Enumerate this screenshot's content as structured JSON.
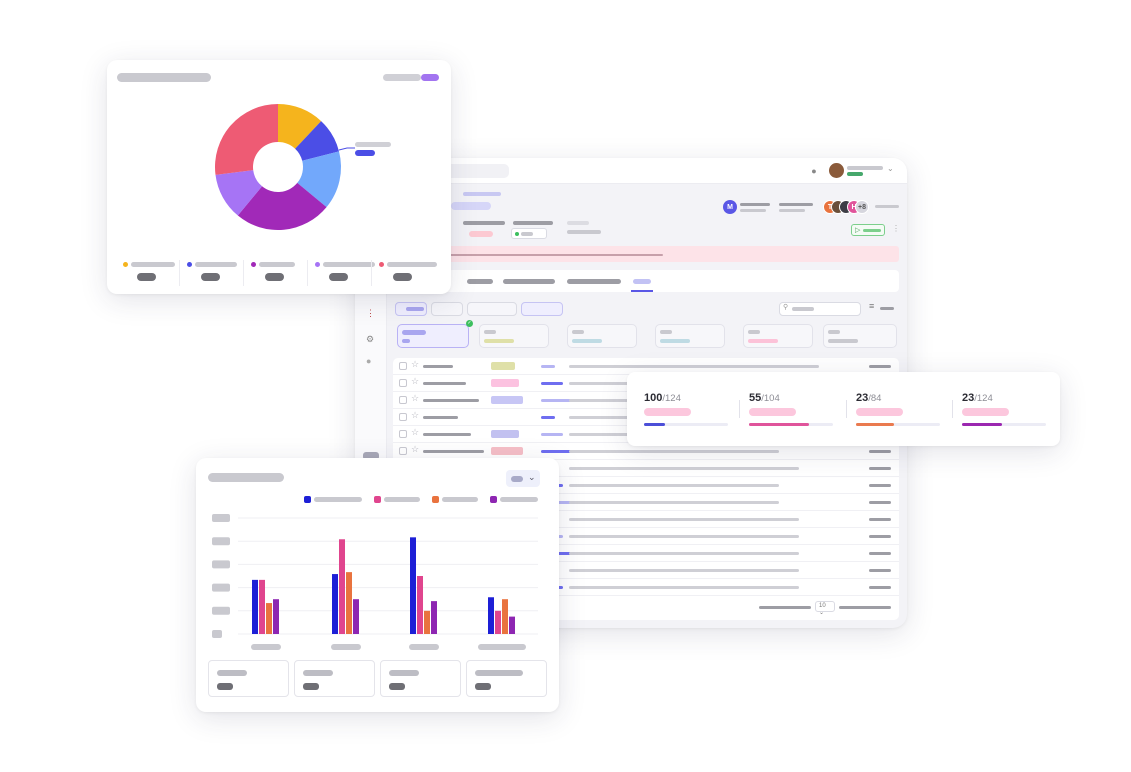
{
  "progress": {
    "metrics": [
      {
        "value": "100",
        "total": "/124",
        "ratio": 0.25,
        "color": "#4c4fd8"
      },
      {
        "value": "55",
        "total": "/104",
        "ratio": 0.72,
        "color": "#e0549b"
      },
      {
        "value": "23",
        "total": "/84",
        "ratio": 0.45,
        "color": "#ea7a4f"
      },
      {
        "value": "23",
        "total": "/124",
        "ratio": 0.48,
        "color": "#9b27b0"
      }
    ]
  },
  "donut": {
    "chart_data": {
      "type": "pie",
      "values": [
        12,
        9,
        15,
        25,
        12,
        27
      ],
      "colors": [
        "#f5b41d",
        "#4b4ee6",
        "#72a8fb",
        "#a129b8",
        "#a674f5",
        "#ee5b74"
      ]
    },
    "legend_colors": [
      "#f5b41d",
      "#4b4ee6",
      "#a129b8",
      "#a674f5",
      "#ee5b74"
    ]
  },
  "bars": {
    "chart_data": {
      "type": "bar",
      "ylim": [
        0,
        60
      ],
      "series_colors": [
        "#1d1fd6",
        "#e0458e",
        "#e9733e",
        "#8e26b2"
      ],
      "series": [
        {
          "values": [
            28,
            31,
            50,
            19
          ]
        },
        {
          "values": [
            28,
            49,
            30,
            12
          ]
        },
        {
          "values": [
            16,
            32,
            12,
            18
          ]
        },
        {
          "values": [
            18,
            18,
            17,
            9
          ]
        }
      ]
    }
  },
  "app": {
    "avatar_initial": "M",
    "team_avatars": [
      {
        "initial": "T",
        "color": "#e9733e"
      },
      {
        "initial": "",
        "color": "#6b4f3a"
      },
      {
        "initial": "",
        "color": "#3d3d46"
      },
      {
        "initial": "H",
        "color": "#e0549b"
      },
      {
        "initial": "+8",
        "color": "#d6d6de"
      }
    ],
    "page_size": "10"
  }
}
